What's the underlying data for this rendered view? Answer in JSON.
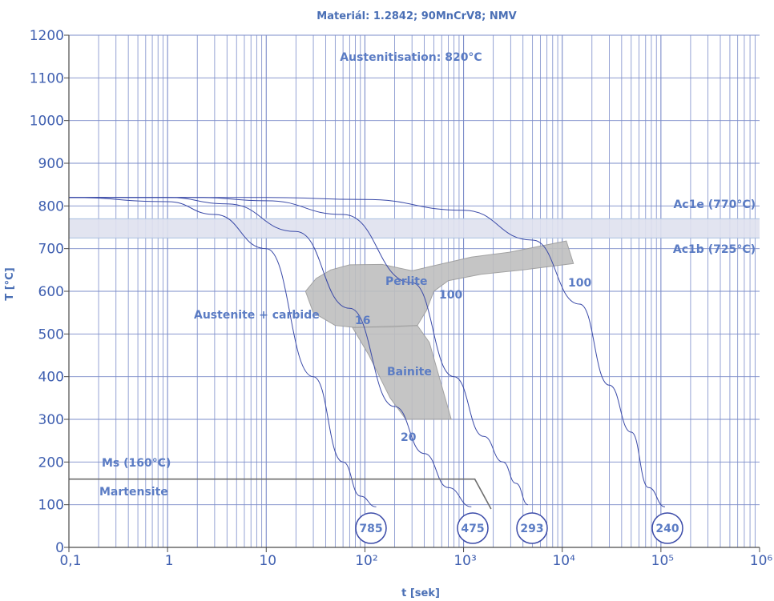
{
  "chart_data": {
    "type": "line",
    "title": "Materiál: 1.2842; 90MnCrV8; NMV",
    "xlabel": "t [sek]",
    "ylabel": "T [°C]",
    "x_scale": "log",
    "xlim": [
      0.1,
      1000000
    ],
    "ylim": [
      0,
      1200
    ],
    "x_tick_labels": [
      "0,1",
      "1",
      "10",
      "10²",
      "10³",
      "10⁴",
      "10⁵",
      "10⁶"
    ],
    "y_ticks": [
      0,
      100,
      200,
      300,
      400,
      500,
      600,
      700,
      800,
      900,
      1000,
      1100,
      1200
    ],
    "grid": true,
    "colors": {
      "grid": "#7b8cc9",
      "curve": "#3a4aa8",
      "band": "#dfe1ee",
      "band_line": "#a9c0e0",
      "region_fill": "#bfbfbf",
      "region_stroke": "#9a9a9a",
      "ms_line": "#6e6e6e",
      "text": "#5b7cc4"
    },
    "annotations": {
      "austenitisation": "Austenitisation: 820°C",
      "ac1e": "Ac1e (770°C)",
      "ac1b": "Ac1b (725°C)",
      "ms": "Ms (160°C)",
      "martensite": "Martensite",
      "austenite_carbide": "Austenite + carbide",
      "perlite": "Perlite",
      "bainite": "Bainite",
      "pct_16": "16",
      "pct_20": "20",
      "pct_100_a": "100",
      "pct_100_b": "100"
    },
    "ac1_band": [
      725,
      770
    ],
    "ms_temperature": 160,
    "cooling_curves": [
      {
        "label": "785",
        "points": [
          [
            0.1,
            820
          ],
          [
            1,
            810
          ],
          [
            3,
            780
          ],
          [
            10,
            700
          ],
          [
            30,
            400
          ],
          [
            60,
            200
          ],
          [
            90,
            120
          ],
          [
            130,
            95
          ]
        ]
      },
      {
        "label": "475",
        "points": [
          [
            0.1,
            820
          ],
          [
            1,
            820
          ],
          [
            4,
            805
          ],
          [
            20,
            740
          ],
          [
            70,
            560
          ],
          [
            200,
            330
          ],
          [
            400,
            220
          ],
          [
            700,
            140
          ],
          [
            1200,
            95
          ]
        ]
      },
      {
        "label": "293",
        "points": [
          [
            0.1,
            820
          ],
          [
            2,
            820
          ],
          [
            10,
            812
          ],
          [
            60,
            780
          ],
          [
            300,
            620
          ],
          [
            800,
            400
          ],
          [
            1600,
            260
          ],
          [
            2500,
            200
          ],
          [
            3400,
            150
          ],
          [
            4500,
            100
          ]
        ]
      },
      {
        "label": "240",
        "points": [
          [
            0.1,
            820
          ],
          [
            10,
            820
          ],
          [
            100,
            815
          ],
          [
            1000,
            790
          ],
          [
            5000,
            720
          ],
          [
            15000,
            570
          ],
          [
            30000,
            380
          ],
          [
            50000,
            270
          ],
          [
            75000,
            140
          ],
          [
            110000,
            95
          ]
        ]
      }
    ]
  }
}
